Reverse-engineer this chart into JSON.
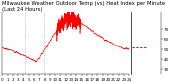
{
  "title": "Milwaukee Weather Outdoor Temp (vs) Heat Index per Minute (Last 24 Hours)",
  "line_color": "#ff0000",
  "bg_color": "#ffffff",
  "grid_color": "#cccccc",
  "vline_color": "#888888",
  "vline_positions": [
    0.175,
    0.33
  ],
  "ylim": [
    25,
    88
  ],
  "xlim": [
    0,
    1
  ],
  "ytick_labels": [
    "70",
    "60",
    "50",
    "40",
    "30"
  ],
  "ytick_vals": [
    70,
    60,
    50,
    40,
    30
  ],
  "title_fontsize": 3.8,
  "tick_fontsize": 3.0,
  "num_points": 1440,
  "seed": 7
}
